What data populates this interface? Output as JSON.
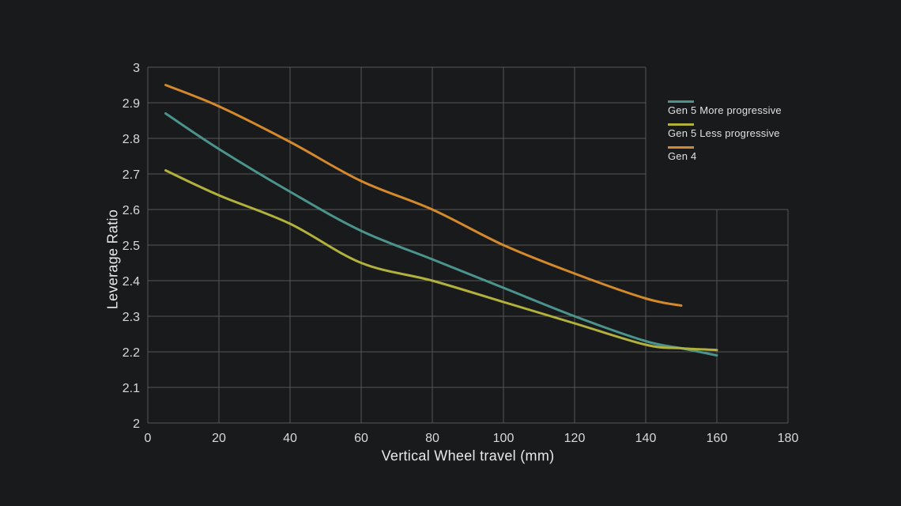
{
  "colors": {
    "background": "#191a1b",
    "grid": "#575757",
    "tick_text": "#d9d9d9",
    "axis_title_text": "#e9e9e9",
    "legend_text": "#e0e0e0"
  },
  "chart_data": {
    "type": "line",
    "title": "",
    "xlabel": "Vertical Wheel travel (mm)",
    "ylabel": "Leverage Ratio",
    "xlim": [
      0,
      180
    ],
    "ylim": [
      2.0,
      3.0
    ],
    "x_ticks": [
      0,
      20,
      40,
      60,
      80,
      100,
      120,
      140,
      160,
      180
    ],
    "y_ticks": [
      2,
      2.1,
      2.2,
      2.3,
      2.4,
      2.5,
      2.6,
      2.7,
      2.8,
      2.9,
      3
    ],
    "grid": "on",
    "grid_notch": {
      "comment": "grid area above y_level only extends to max_x_above_y; below y_level it extends to xlim max",
      "max_x_above_y": 140,
      "y_level": 2.6
    },
    "legend_position": "right-of-plot-top",
    "series": [
      {
        "name": "Gen 5 More progressive",
        "color": "#4b948e",
        "x": [
          5,
          20,
          40,
          60,
          80,
          100,
          120,
          140,
          150,
          160
        ],
        "y": [
          2.87,
          2.77,
          2.65,
          2.54,
          2.46,
          2.38,
          2.3,
          2.23,
          2.21,
          2.19
        ]
      },
      {
        "name": "Gen 5 Less progressive",
        "color": "#b2b13c",
        "x": [
          5,
          20,
          40,
          60,
          80,
          100,
          120,
          140,
          150,
          160
        ],
        "y": [
          2.71,
          2.64,
          2.56,
          2.45,
          2.4,
          2.34,
          2.28,
          2.22,
          2.21,
          2.205
        ]
      },
      {
        "name": "Gen 4",
        "color": "#d3892c",
        "x": [
          5,
          20,
          40,
          60,
          80,
          100,
          120,
          140,
          150
        ],
        "y": [
          2.95,
          2.89,
          2.79,
          2.68,
          2.6,
          2.5,
          2.42,
          2.35,
          2.33
        ]
      }
    ]
  }
}
